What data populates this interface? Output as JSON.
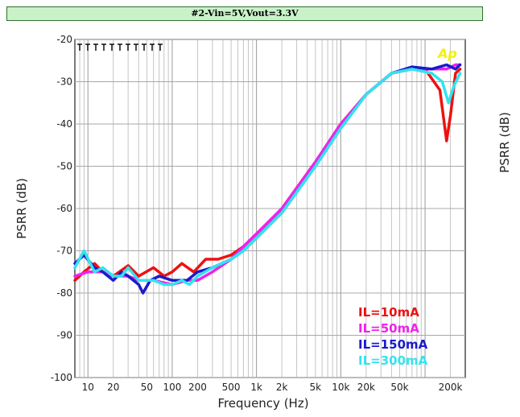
{
  "chart_data": {
    "type": "line",
    "title": "#2-Vin=5V,Vout=3.3V",
    "xlabel": "Frequency (Hz)",
    "ylabel": "PSRR (dB)",
    "ylabel_right": "PSRR (dB)",
    "badge": "Ap",
    "x_scale": "log",
    "xlim": [
      7,
      300000
    ],
    "ylim": [
      -100,
      -20
    ],
    "x_ticks": [
      {
        "value": 10,
        "label": "10"
      },
      {
        "value": 20,
        "label": "20"
      },
      {
        "value": 50,
        "label": "50"
      },
      {
        "value": 100,
        "label": "100"
      },
      {
        "value": 200,
        "label": "200"
      },
      {
        "value": 500,
        "label": "500"
      },
      {
        "value": 1000,
        "label": "1k"
      },
      {
        "value": 2000,
        "label": "2k"
      },
      {
        "value": 5000,
        "label": "5k"
      },
      {
        "value": 10000,
        "label": "10k"
      },
      {
        "value": 20000,
        "label": "20k"
      },
      {
        "value": 50000,
        "label": "50k"
      },
      {
        "value": 200000,
        "label": "200k"
      }
    ],
    "y_ticks": [
      -20,
      -30,
      -40,
      -50,
      -60,
      -70,
      -80,
      -90,
      -100
    ],
    "grid": true,
    "legend_position": "bottom-right",
    "series": [
      {
        "name": "IL=10mA",
        "color": "#ee1111",
        "points": [
          [
            7,
            -77
          ],
          [
            9,
            -75
          ],
          [
            12,
            -73
          ],
          [
            15,
            -75
          ],
          [
            20,
            -76
          ],
          [
            30,
            -73.5
          ],
          [
            40,
            -76
          ],
          [
            60,
            -74
          ],
          [
            80,
            -76
          ],
          [
            100,
            -75
          ],
          [
            130,
            -73
          ],
          [
            180,
            -75
          ],
          [
            250,
            -72
          ],
          [
            350,
            -72
          ],
          [
            500,
            -71
          ],
          [
            700,
            -69
          ],
          [
            1000,
            -66
          ],
          [
            2000,
            -60
          ],
          [
            5000,
            -49
          ],
          [
            10000,
            -40
          ],
          [
            20000,
            -33
          ],
          [
            40000,
            -28
          ],
          [
            70000,
            -27
          ],
          [
            100000,
            -27
          ],
          [
            150000,
            -32
          ],
          [
            180000,
            -44
          ],
          [
            200000,
            -38
          ],
          [
            230000,
            -28
          ],
          [
            260000,
            -27
          ]
        ]
      },
      {
        "name": "IL=50mA",
        "color": "#ee22ee",
        "points": [
          [
            7,
            -76
          ],
          [
            10,
            -75
          ],
          [
            15,
            -75
          ],
          [
            20,
            -76
          ],
          [
            30,
            -76
          ],
          [
            40,
            -77
          ],
          [
            60,
            -77
          ],
          [
            100,
            -78
          ],
          [
            150,
            -77
          ],
          [
            200,
            -77
          ],
          [
            300,
            -75
          ],
          [
            500,
            -72
          ],
          [
            700,
            -69
          ],
          [
            1000,
            -66
          ],
          [
            2000,
            -60
          ],
          [
            5000,
            -49
          ],
          [
            10000,
            -40
          ],
          [
            20000,
            -33
          ],
          [
            40000,
            -28
          ],
          [
            70000,
            -27
          ],
          [
            120000,
            -27
          ],
          [
            180000,
            -27
          ],
          [
            230000,
            -26
          ],
          [
            260000,
            -26
          ]
        ]
      },
      {
        "name": "IL=150mA",
        "color": "#1a1acc",
        "points": [
          [
            7,
            -73
          ],
          [
            9,
            -71
          ],
          [
            12,
            -74
          ],
          [
            15,
            -75
          ],
          [
            20,
            -77
          ],
          [
            25,
            -75
          ],
          [
            30,
            -76
          ],
          [
            40,
            -78
          ],
          [
            45,
            -80
          ],
          [
            55,
            -77
          ],
          [
            70,
            -76
          ],
          [
            100,
            -77
          ],
          [
            150,
            -77
          ],
          [
            200,
            -75
          ],
          [
            300,
            -74
          ],
          [
            500,
            -72
          ],
          [
            700,
            -70
          ],
          [
            1000,
            -67
          ],
          [
            2000,
            -61
          ],
          [
            5000,
            -50
          ],
          [
            10000,
            -41
          ],
          [
            20000,
            -33
          ],
          [
            40000,
            -28
          ],
          [
            70000,
            -26.5
          ],
          [
            120000,
            -27
          ],
          [
            180000,
            -26
          ],
          [
            230000,
            -27
          ],
          [
            260000,
            -26
          ]
        ]
      },
      {
        "name": "IL=300mA",
        "color": "#33e3ee",
        "points": [
          [
            7,
            -74
          ],
          [
            9,
            -70
          ],
          [
            12,
            -75
          ],
          [
            15,
            -74
          ],
          [
            20,
            -76
          ],
          [
            25,
            -76
          ],
          [
            30,
            -74
          ],
          [
            40,
            -77
          ],
          [
            60,
            -77
          ],
          [
            80,
            -78
          ],
          [
            100,
            -78
          ],
          [
            130,
            -77
          ],
          [
            160,
            -78
          ],
          [
            200,
            -76
          ],
          [
            300,
            -74
          ],
          [
            500,
            -72
          ],
          [
            700,
            -70
          ],
          [
            1000,
            -67
          ],
          [
            2000,
            -61
          ],
          [
            5000,
            -50
          ],
          [
            10000,
            -41
          ],
          [
            20000,
            -33
          ],
          [
            40000,
            -28
          ],
          [
            70000,
            -27
          ],
          [
            120000,
            -28
          ],
          [
            160000,
            -30
          ],
          [
            190000,
            -35
          ],
          [
            220000,
            -31
          ],
          [
            260000,
            -28
          ]
        ]
      }
    ]
  }
}
